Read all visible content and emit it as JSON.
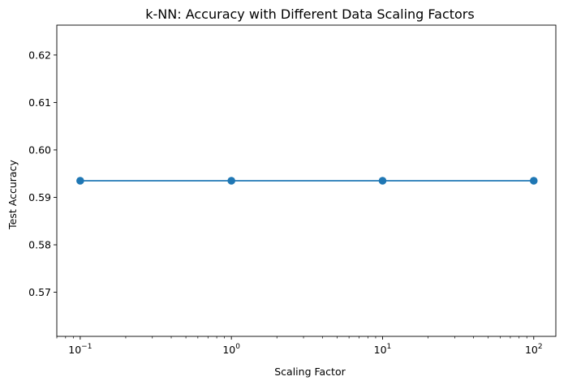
{
  "chart_data": {
    "type": "line",
    "title": "k-NN: Accuracy with Different Data Scaling Factors",
    "xlabel": "Scaling Factor",
    "ylabel": "Test Accuracy",
    "xscale": "log",
    "xlim": [
      0.07,
      140
    ],
    "ylim": [
      0.5607,
      0.6263
    ],
    "x_ticks": [
      {
        "value": 0.1,
        "base": "10",
        "exp": "−1"
      },
      {
        "value": 1,
        "base": "10",
        "exp": "0"
      },
      {
        "value": 10,
        "base": "10",
        "exp": "1"
      },
      {
        "value": 100,
        "base": "10",
        "exp": "2"
      }
    ],
    "y_ticks": [
      "0.57",
      "0.58",
      "0.59",
      "0.60",
      "0.61",
      "0.62"
    ],
    "series": [
      {
        "x": [
          0.1,
          1,
          10,
          100
        ],
        "y": [
          0.5935,
          0.5935,
          0.5935,
          0.5935
        ],
        "color": "#1f77b4",
        "marker": "circle"
      }
    ],
    "grid": false,
    "legend": "none"
  }
}
